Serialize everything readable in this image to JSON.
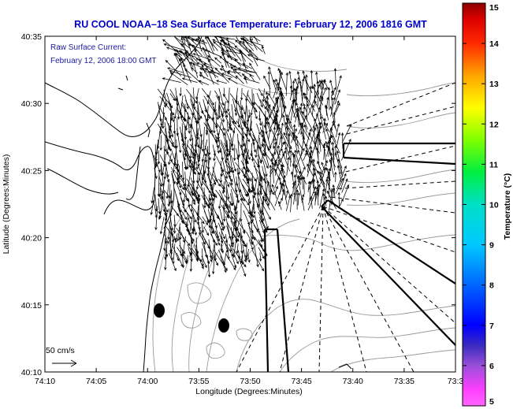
{
  "title": "RU COOL  NOAA–18  Sea Surface Temperature:  February 12, 2006 1816 GMT",
  "legend_note": {
    "line1": "Raw Surface Current:",
    "line2": "February 12, 2006 18:00 GMT"
  },
  "scale_label": "50 cm/s",
  "axes": {
    "xlabel": "Longitude (Degrees:Minutes)",
    "ylabel": "Latitude (Degrees:Minutes)",
    "x_ticks": [
      "74:10",
      "74:05",
      "74:00",
      "73:55",
      "73:50",
      "73:45",
      "73:40",
      "73:35",
      "73:3"
    ],
    "y_ticks": [
      "40:35",
      "40:30",
      "40:25",
      "40:20",
      "40:15",
      "40:10"
    ]
  },
  "colorbar": {
    "label": "Temperature (°C)",
    "ticks": [
      "15",
      "14",
      "13",
      "12",
      "11",
      "10",
      "9",
      "8",
      "7",
      "6",
      "5"
    ],
    "min": 5,
    "max": 15
  },
  "colors": {
    "title": "#0000cc",
    "note": "#1a1aa0",
    "coast": "#000000",
    "bathymetry": "#999999"
  }
}
